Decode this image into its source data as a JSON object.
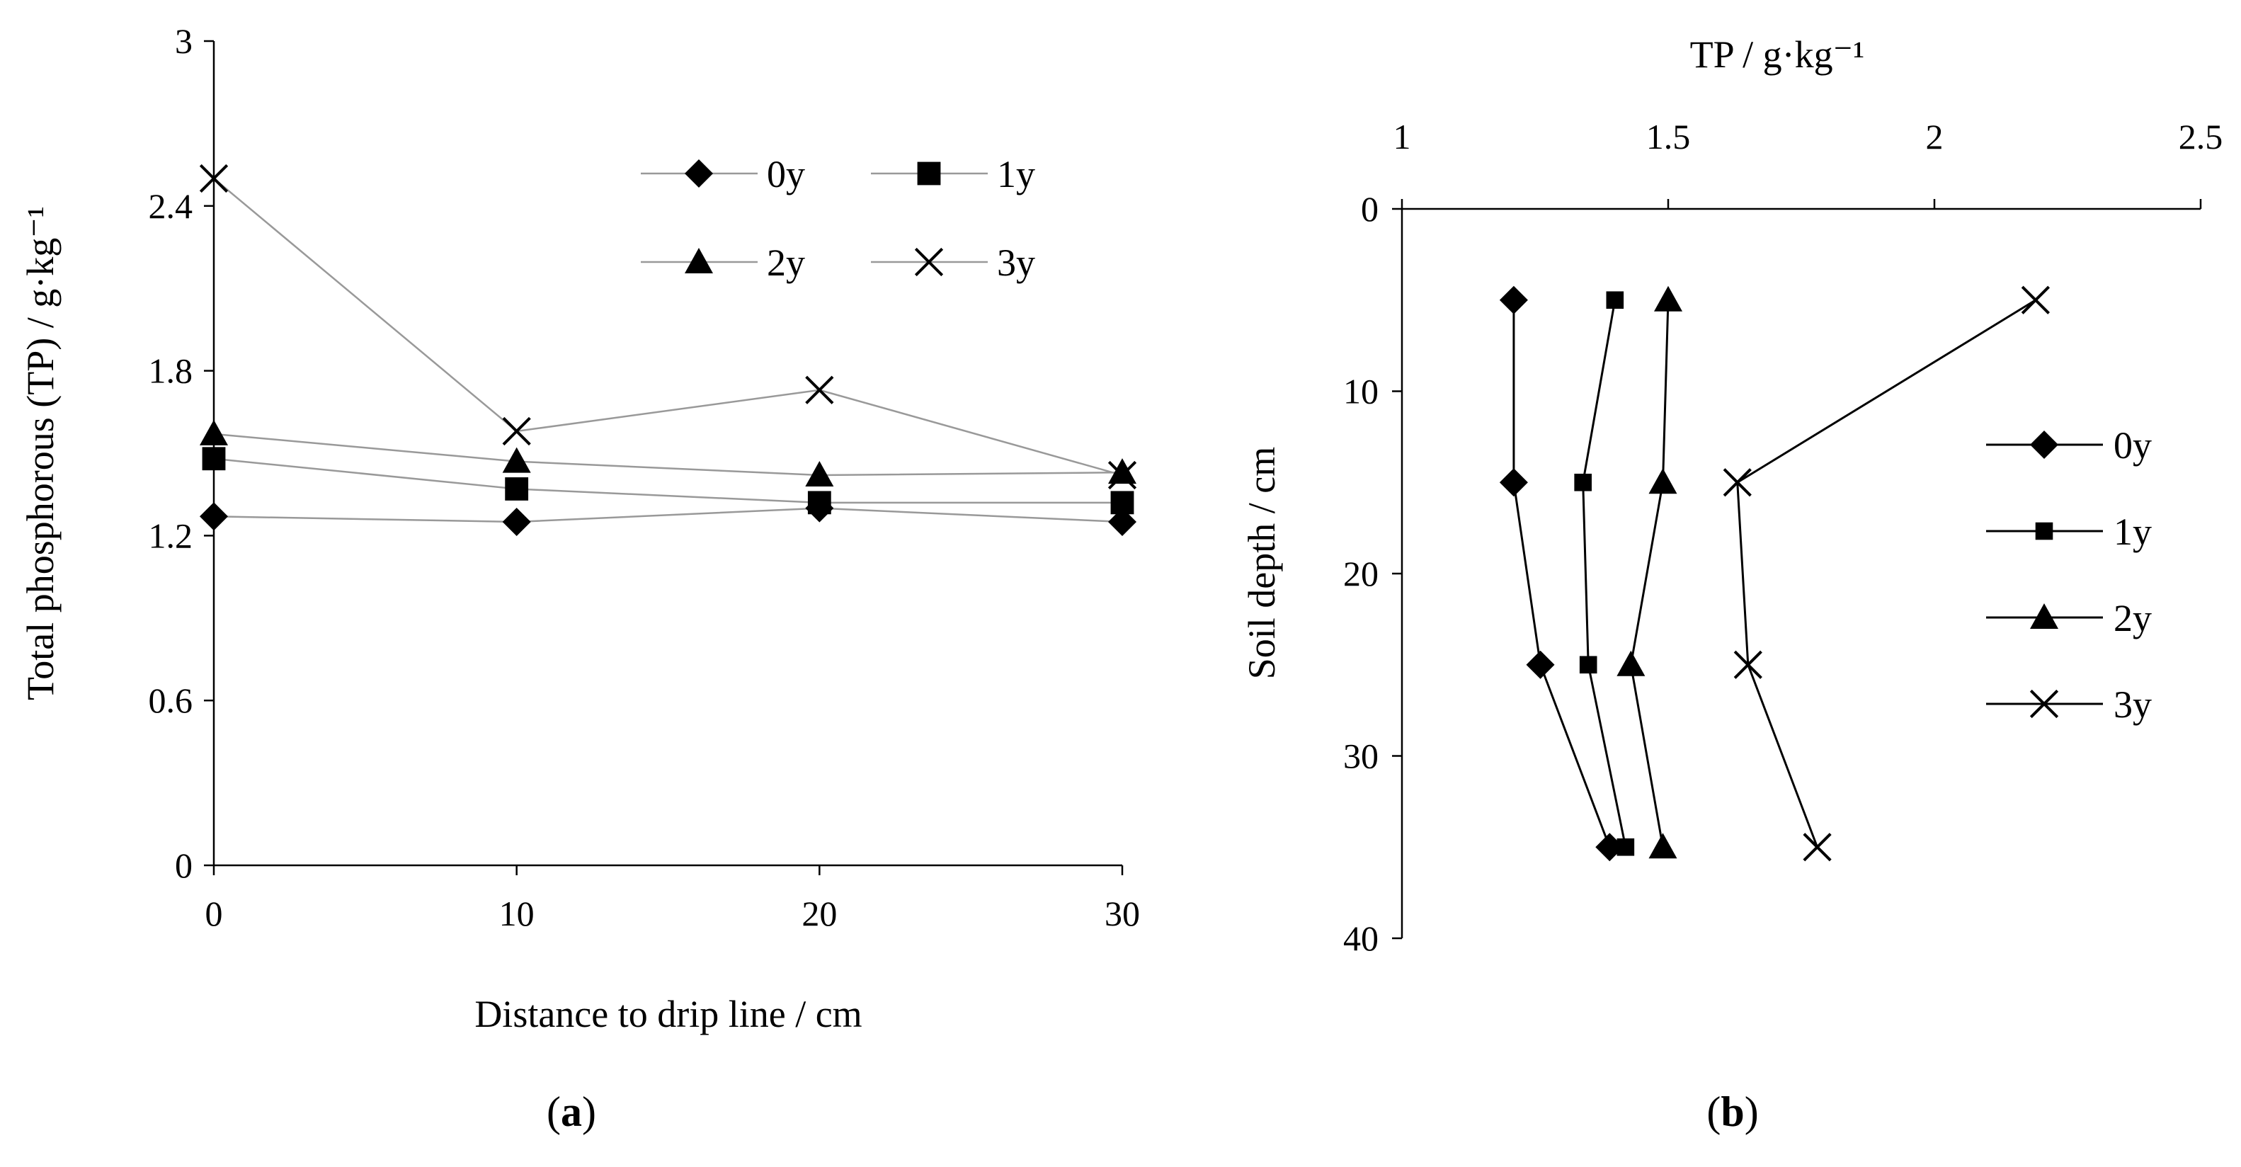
{
  "chart_data": [
    {
      "panel": "a",
      "type": "line",
      "xlabel": "Distance to drip line / cm",
      "ylabel": "Total phosphorous (TP) / g·kg⁻¹",
      "x": [
        0,
        10,
        20,
        30
      ],
      "x_ticks": [
        "0",
        "10",
        "20",
        "30"
      ],
      "y_ticks": [
        "0",
        "0.6",
        "1.2",
        "1.8",
        "2.4",
        "3"
      ],
      "xlim": [
        0,
        30
      ],
      "ylim": [
        0,
        3
      ],
      "legend_position": "top-right",
      "series": [
        {
          "name": "0y",
          "marker": "diamond",
          "values": [
            1.27,
            1.25,
            1.3,
            1.25
          ]
        },
        {
          "name": "1y",
          "marker": "square",
          "values": [
            1.48,
            1.37,
            1.32,
            1.32
          ]
        },
        {
          "name": "2y",
          "marker": "triangle",
          "values": [
            1.57,
            1.47,
            1.42,
            1.43
          ]
        },
        {
          "name": "3y",
          "marker": "x",
          "values": [
            2.5,
            1.58,
            1.73,
            1.42
          ]
        }
      ],
      "label_prefix": "(",
      "label_letter": "a",
      "label_suffix": ")"
    },
    {
      "panel": "b",
      "type": "line",
      "xlabel": "TP / g·kg⁻¹",
      "ylabel": "Soil depth / cm",
      "x_ticks": [
        "1",
        "1.5",
        "2",
        "2.5"
      ],
      "y_ticks": [
        "0",
        "10",
        "20",
        "30",
        "40"
      ],
      "xlim": [
        1,
        2.5
      ],
      "ylim": [
        0,
        40
      ],
      "y_inverted": true,
      "x_axis_position": "top",
      "legend_position": "right",
      "depth": [
        5,
        15,
        25,
        35
      ],
      "series": [
        {
          "name": "0y",
          "marker": "diamond",
          "values": [
            1.21,
            1.21,
            1.26,
            1.39
          ]
        },
        {
          "name": "1y",
          "marker": "square",
          "values": [
            1.4,
            1.34,
            1.35,
            1.42
          ]
        },
        {
          "name": "2y",
          "marker": "triangle",
          "values": [
            1.5,
            1.49,
            1.43,
            1.49
          ]
        },
        {
          "name": "3y",
          "marker": "x",
          "values": [
            2.19,
            1.63,
            1.65,
            1.78
          ]
        }
      ],
      "label_prefix": "(",
      "label_letter": "b",
      "label_suffix": ")"
    }
  ],
  "colors": {
    "panel_a_line": "#999999",
    "panel_b_line": "#000000",
    "marker": "#000000",
    "axis": "#000000"
  }
}
